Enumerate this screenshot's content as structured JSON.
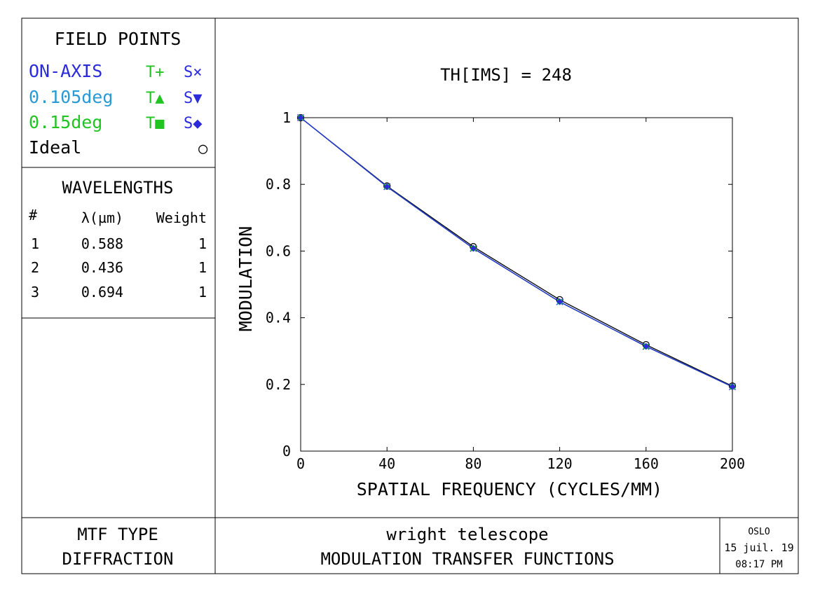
{
  "field_points": {
    "title": "FIELD POINTS",
    "rows": [
      {
        "name": "ON-AXIS",
        "t": "T+",
        "s": "S×",
        "color": "#2b2bd9"
      },
      {
        "name": "0.105deg",
        "t": "T▲",
        "s": "S▼",
        "color": "#2a9ad6"
      },
      {
        "name": "0.15deg",
        "t": "T■",
        "s": "S◆",
        "color": "#22c422"
      },
      {
        "name": "Ideal",
        "t": "",
        "s": "○",
        "color": "#000000"
      }
    ],
    "t_color": "#22c422",
    "s_color": "#2b2bd9"
  },
  "wavelengths": {
    "title": "WAVELENGTHS",
    "headers": [
      "#",
      "λ(µm)",
      "Weight"
    ],
    "rows": [
      [
        "1",
        "0.588",
        "1"
      ],
      [
        "2",
        "0.436",
        "1"
      ],
      [
        "3",
        "0.694",
        "1"
      ]
    ]
  },
  "footer": {
    "mtf_type_label": "MTF TYPE",
    "mtf_type_value": "DIFFRACTION",
    "lens_name": "wright telescope",
    "plot_name": "MODULATION TRANSFER FUNCTIONS",
    "program": "OSLO",
    "date": "15 juil. 19",
    "time": "08:17 PM"
  },
  "chart_data": {
    "type": "line",
    "title": "TH[IMS] = 248",
    "xlabel": "SPATIAL FREQUENCY (CYCLES/MM)",
    "ylabel": "MODULATION",
    "xlim": [
      0,
      200
    ],
    "ylim": [
      0,
      1
    ],
    "xticks": [
      0,
      40,
      80,
      120,
      160,
      200
    ],
    "yticks": [
      0,
      0.2,
      0.4,
      0.6,
      0.8,
      1
    ],
    "ytick_labels": [
      "0",
      "0.2",
      "0.4",
      "0.6",
      "0.8",
      "1"
    ],
    "x": [
      0,
      40,
      80,
      120,
      160,
      200
    ],
    "series": [
      {
        "name": "Ideal",
        "values": [
          1,
          0.795,
          0.613,
          0.454,
          0.319,
          0.195
        ],
        "color": "#000000",
        "marker": "circle"
      },
      {
        "name": "ON-AXIS T",
        "values": [
          1,
          0.793,
          0.608,
          0.448,
          0.314,
          0.193
        ],
        "color": "#2b2bd9",
        "marker": "plus"
      },
      {
        "name": "ON-AXIS S",
        "values": [
          1,
          0.793,
          0.608,
          0.448,
          0.314,
          0.193
        ],
        "color": "#2b2bd9",
        "marker": "cross"
      },
      {
        "name": "0.105deg T",
        "values": [
          1,
          0.793,
          0.608,
          0.448,
          0.314,
          0.193
        ],
        "color": "#2a9ad6",
        "marker": "triangle-up"
      },
      {
        "name": "0.105deg S",
        "values": [
          1,
          0.793,
          0.608,
          0.448,
          0.314,
          0.193
        ],
        "color": "#2a9ad6",
        "marker": "triangle-down"
      },
      {
        "name": "0.15deg T",
        "values": [
          1,
          0.793,
          0.608,
          0.448,
          0.314,
          0.193
        ],
        "color": "#22c422",
        "marker": "square"
      },
      {
        "name": "0.15deg S",
        "values": [
          1,
          0.793,
          0.608,
          0.448,
          0.314,
          0.193
        ],
        "color": "#2b2bd9",
        "marker": "diamond"
      }
    ]
  }
}
